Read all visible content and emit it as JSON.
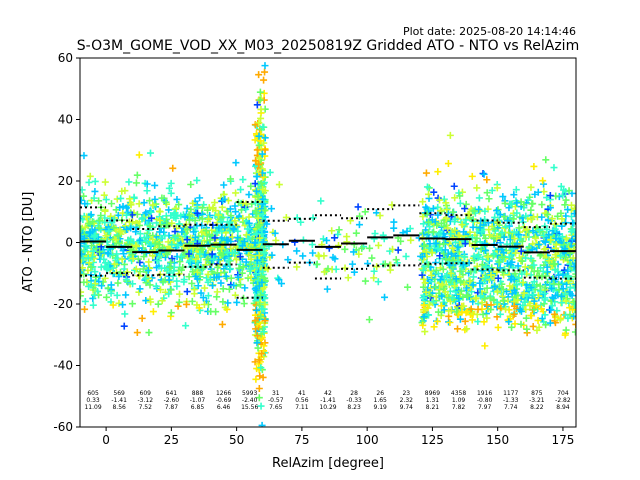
{
  "plot_date": "Plot date: 2025-08-20 14:14:46",
  "chart_data": {
    "type": "scatter",
    "title": "S-O3M_GOME_VOD_XX_M03_20250819Z Gridded ATO - NTO vs RelAzim",
    "xlabel": "RelAzim [degree]",
    "ylabel": "ATO - NTO [DU]",
    "xlim": [
      -10,
      180
    ],
    "ylim": [
      -60,
      60
    ],
    "xticks": [
      0,
      25,
      50,
      75,
      100,
      125,
      150,
      175
    ],
    "yticks": [
      -60,
      -40,
      -20,
      0,
      20,
      40,
      60
    ],
    "grid": false,
    "marker": "+",
    "point_colors": [
      "#00c8ff",
      "#33ffcc",
      "#66ff66",
      "#ccff33",
      "#ffee00",
      "#ffaa00",
      "#0044ff"
    ],
    "bins": [
      {
        "x": -5,
        "count": "605",
        "mean": "0.33",
        "std": "11.09"
      },
      {
        "x": 5,
        "count": "569",
        "mean": "-1.41",
        "std": "8.56"
      },
      {
        "x": 15,
        "count": "609",
        "mean": "-3.12",
        "std": "7.52"
      },
      {
        "x": 25,
        "count": "641",
        "mean": "-2.60",
        "std": "7.87"
      },
      {
        "x": 35,
        "count": "888",
        "mean": "-1.07",
        "std": "6.85"
      },
      {
        "x": 45,
        "count": "1266",
        "mean": "-0.69",
        "std": "6.46"
      },
      {
        "x": 55,
        "count": "5993",
        "mean": "-2.40",
        "std": "15.56"
      },
      {
        "x": 65,
        "count": "31",
        "mean": "-0.57",
        "std": "7.65"
      },
      {
        "x": 75,
        "count": "41",
        "mean": "0.56",
        "std": "7.11"
      },
      {
        "x": 85,
        "count": "42",
        "mean": "-1.41",
        "std": "10.29"
      },
      {
        "x": 95,
        "count": "28",
        "mean": "-0.33",
        "std": "8.23"
      },
      {
        "x": 105,
        "count": "26",
        "mean": "1.65",
        "std": "9.19"
      },
      {
        "x": 115,
        "count": "23",
        "mean": "2.32",
        "std": "9.74"
      },
      {
        "x": 125,
        "count": "8969",
        "mean": "1.31",
        "std": "8.21"
      },
      {
        "x": 135,
        "count": "4358",
        "mean": "1.09",
        "std": "7.82"
      },
      {
        "x": 145,
        "count": "1916",
        "mean": "-0.80",
        "std": "7.97"
      },
      {
        "x": 155,
        "count": "1177",
        "mean": "-1.33",
        "std": "7.74"
      },
      {
        "x": 165,
        "count": "875",
        "mean": "-3.21",
        "std": "8.22"
      },
      {
        "x": 175,
        "count": "704",
        "mean": "-2.82",
        "std": "8.94"
      }
    ]
  }
}
